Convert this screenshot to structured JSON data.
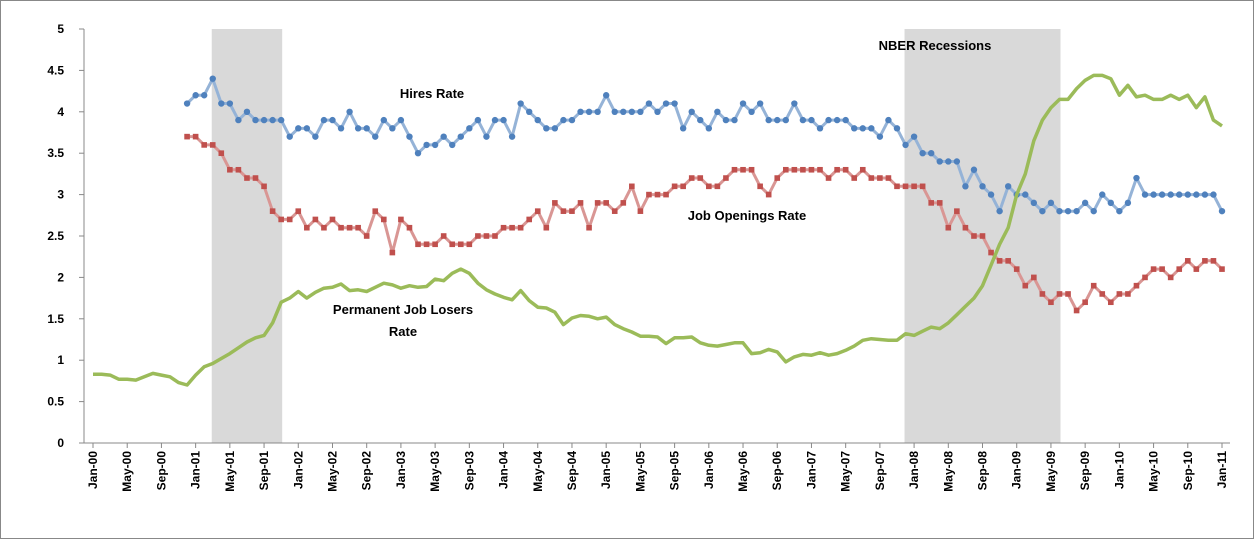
{
  "chart_data": {
    "type": "line",
    "categories": [
      "Jan-00",
      null,
      null,
      null,
      "May-00",
      null,
      null,
      null,
      "Sep-00",
      null,
      null,
      null,
      "Jan-01",
      null,
      null,
      null,
      "May-01",
      null,
      null,
      null,
      "Sep-01",
      null,
      null,
      null,
      "Jan-02",
      null,
      null,
      null,
      "May-02",
      null,
      null,
      null,
      "Sep-02",
      null,
      null,
      null,
      "Jan-03",
      null,
      null,
      null,
      "May-03",
      null,
      null,
      null,
      "Sep-03",
      null,
      null,
      null,
      "Jan-04",
      null,
      null,
      null,
      "May-04",
      null,
      null,
      null,
      "Sep-04",
      null,
      null,
      null,
      "Jan-05",
      null,
      null,
      null,
      "May-05",
      null,
      null,
      null,
      "Sep-05",
      null,
      null,
      null,
      "Jan-06",
      null,
      null,
      null,
      "May-06",
      null,
      null,
      null,
      "Sep-06",
      null,
      null,
      null,
      "Jan-07",
      null,
      null,
      null,
      "May-07",
      null,
      null,
      null,
      "Sep-07",
      null,
      null,
      null,
      "Jan-08",
      null,
      null,
      null,
      "May-08",
      null,
      null,
      null,
      "Sep-08",
      null,
      null,
      null,
      "Jan-09",
      null,
      null,
      null,
      "May-09",
      null,
      null,
      null,
      "Sep-09",
      null,
      null,
      null,
      "Jan-10",
      null,
      null,
      null,
      "May-10",
      null,
      null,
      null,
      "Sep-10",
      null,
      null,
      null,
      "Jan-11"
    ],
    "series": [
      {
        "color": "#4f81bd",
        "line_color": "#95b3d7",
        "marker": "circle",
        "values": [
          null,
          null,
          null,
          null,
          null,
          null,
          null,
          null,
          null,
          null,
          null,
          4.1,
          4.2,
          4.2,
          4.4,
          4.1,
          4.1,
          3.9,
          4.0,
          3.9,
          3.9,
          3.9,
          3.9,
          3.7,
          3.8,
          3.8,
          3.7,
          3.9,
          3.9,
          3.8,
          4.0,
          3.8,
          3.8,
          3.7,
          3.9,
          3.8,
          3.9,
          3.7,
          3.5,
          3.6,
          3.6,
          3.7,
          3.6,
          3.7,
          3.8,
          3.9,
          3.7,
          3.9,
          3.9,
          3.7,
          4.1,
          4.0,
          3.9,
          3.8,
          3.8,
          3.9,
          3.9,
          4.0,
          4.0,
          4.0,
          4.2,
          4.0,
          4.0,
          4.0,
          4.0,
          4.1,
          4.0,
          4.1,
          4.1,
          3.8,
          4.0,
          3.9,
          3.8,
          4.0,
          3.9,
          3.9,
          4.1,
          4.0,
          4.1,
          3.9,
          3.9,
          3.9,
          4.1,
          3.9,
          3.9,
          3.8,
          3.9,
          3.9,
          3.9,
          3.8,
          3.8,
          3.8,
          3.7,
          3.9,
          3.8,
          3.6,
          3.7,
          3.5,
          3.5,
          3.4,
          3.4,
          3.4,
          3.1,
          3.3,
          3.1,
          3.0,
          2.8,
          3.1,
          3.0,
          3.0,
          2.9,
          2.8,
          2.9,
          2.8,
          2.8,
          2.8,
          2.9,
          2.8,
          3.0,
          2.9,
          2.8,
          2.9,
          3.2,
          3.0,
          3.0,
          3.0,
          3.0,
          3.0,
          3.0,
          3.0,
          3.0,
          3.0,
          2.8
        ]
      },
      {
        "color": "#c0504d",
        "line_color": "#d99694",
        "marker": "square",
        "values": [
          null,
          null,
          null,
          null,
          null,
          null,
          null,
          null,
          null,
          null,
          null,
          3.7,
          3.7,
          3.6,
          3.6,
          3.5,
          3.3,
          3.3,
          3.2,
          3.2,
          3.1,
          2.8,
          2.7,
          2.7,
          2.8,
          2.6,
          2.7,
          2.6,
          2.7,
          2.6,
          2.6,
          2.6,
          2.5,
          2.8,
          2.7,
          2.3,
          2.7,
          2.6,
          2.4,
          2.4,
          2.4,
          2.5,
          2.4,
          2.4,
          2.4,
          2.5,
          2.5,
          2.5,
          2.6,
          2.6,
          2.6,
          2.7,
          2.8,
          2.6,
          2.9,
          2.8,
          2.8,
          2.9,
          2.6,
          2.9,
          2.9,
          2.8,
          2.9,
          3.1,
          2.8,
          3.0,
          3.0,
          3.0,
          3.1,
          3.1,
          3.2,
          3.2,
          3.1,
          3.1,
          3.2,
          3.3,
          3.3,
          3.3,
          3.1,
          3.0,
          3.2,
          3.3,
          3.3,
          3.3,
          3.3,
          3.3,
          3.2,
          3.3,
          3.3,
          3.2,
          3.3,
          3.2,
          3.2,
          3.2,
          3.1,
          3.1,
          3.1,
          3.1,
          2.9,
          2.9,
          2.6,
          2.8,
          2.6,
          2.5,
          2.5,
          2.3,
          2.2,
          2.2,
          2.1,
          1.9,
          2.0,
          1.8,
          1.7,
          1.8,
          1.8,
          1.6,
          1.7,
          1.9,
          1.8,
          1.7,
          1.8,
          1.8,
          1.9,
          2.0,
          2.1,
          2.1,
          2.0,
          2.1,
          2.2,
          2.1,
          2.2,
          2.2,
          2.1
        ]
      },
      {
        "color": "#9bbb59",
        "line_color": "#9bbb59",
        "marker": "none",
        "values": [
          0.83,
          0.83,
          0.82,
          0.77,
          0.77,
          0.76,
          0.8,
          0.84,
          0.82,
          0.8,
          0.73,
          0.7,
          0.82,
          0.92,
          0.96,
          1.02,
          1.08,
          1.15,
          1.22,
          1.27,
          1.3,
          1.45,
          1.7,
          1.75,
          1.83,
          1.75,
          1.82,
          1.87,
          1.88,
          1.92,
          1.84,
          1.85,
          1.83,
          1.88,
          1.93,
          1.91,
          1.87,
          1.9,
          1.88,
          1.89,
          1.98,
          1.96,
          2.05,
          2.1,
          2.05,
          1.93,
          1.85,
          1.8,
          1.76,
          1.73,
          1.84,
          1.72,
          1.64,
          1.63,
          1.58,
          1.43,
          1.51,
          1.54,
          1.53,
          1.5,
          1.52,
          1.43,
          1.38,
          1.34,
          1.29,
          1.29,
          1.28,
          1.2,
          1.27,
          1.27,
          1.28,
          1.21,
          1.18,
          1.17,
          1.19,
          1.21,
          1.21,
          1.08,
          1.09,
          1.13,
          1.1,
          0.98,
          1.04,
          1.07,
          1.06,
          1.09,
          1.06,
          1.08,
          1.12,
          1.17,
          1.24,
          1.26,
          1.25,
          1.24,
          1.24,
          1.32,
          1.3,
          1.35,
          1.4,
          1.38,
          1.45,
          1.55,
          1.65,
          1.75,
          1.9,
          2.15,
          2.4,
          2.6,
          3.0,
          3.25,
          3.65,
          3.9,
          4.05,
          4.15,
          4.15,
          4.28,
          4.38,
          4.44,
          4.44,
          4.4,
          4.2,
          4.32,
          4.18,
          4.2,
          4.15,
          4.15,
          4.2,
          4.15,
          4.2,
          4.05,
          4.18,
          3.9,
          3.83
        ]
      }
    ],
    "shaded_ranges": [
      [
        14,
        22
      ],
      [
        95,
        113
      ]
    ],
    "shade_color": "#d9d9d9",
    "annotations": [
      "Hires Rate",
      "Job Openings Rate",
      "Permanent Job Losers",
      "Rate",
      "NBER Recessions"
    ],
    "ylim": [
      0,
      5
    ],
    "yticks": [
      0,
      0.5,
      1,
      1.5,
      2,
      2.5,
      3,
      3.5,
      4,
      4.5,
      5
    ],
    "grid": false
  }
}
